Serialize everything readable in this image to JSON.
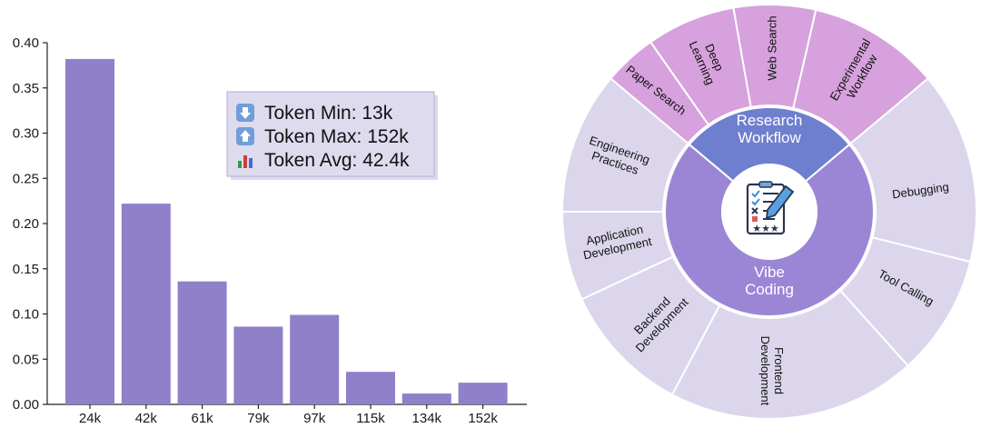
{
  "chart_data": [
    {
      "type": "bar",
      "categories": [
        "24k",
        "42k",
        "61k",
        "79k",
        "97k",
        "115k",
        "134k",
        "152k"
      ],
      "values": [
        0.382,
        0.222,
        0.136,
        0.086,
        0.099,
        0.036,
        0.012,
        0.024
      ],
      "ylim": [
        0,
        0.4
      ],
      "yticks": [
        "0.00",
        "0.05",
        "0.10",
        "0.15",
        "0.20",
        "0.25",
        "0.30",
        "0.35",
        "0.40"
      ],
      "bar_color": "#9080ca",
      "grid": false,
      "legend": {
        "placement": "top-right",
        "entries": [
          {
            "icon": "down-arrow-icon",
            "text": "Token Min: 13k"
          },
          {
            "icon": "up-arrow-icon",
            "text": "Token Max: 152k"
          },
          {
            "icon": "bar-chart-icon",
            "text": "Token Avg: 42.4k"
          }
        ]
      }
    },
    {
      "type": "sunburst",
      "center_icon": "task-checklist-icon",
      "inner": [
        {
          "name": "Research Workflow",
          "label_lines": [
            "Research",
            "Workflow"
          ],
          "color": "#6f7fcf"
        },
        {
          "name": "Vibe Coding",
          "label_lines": [
            "Vibe",
            "Coding"
          ],
          "color": "#9b86d6"
        }
      ],
      "outer": [
        {
          "parent": "Research Workflow",
          "label_lines": [
            "Paper Search"
          ],
          "color": "#d6a1dc"
        },
        {
          "parent": "Research Workflow",
          "label_lines": [
            "Deep",
            "Learning"
          ],
          "color": "#d6a1dc"
        },
        {
          "parent": "Research Workflow",
          "label_lines": [
            "Web Search"
          ],
          "color": "#d6a1dc"
        },
        {
          "parent": "Research Workflow",
          "label_lines": [
            "Experimental",
            "Workflow"
          ],
          "color": "#d6a1dc"
        },
        {
          "parent": "Vibe Coding",
          "label_lines": [
            "Debugging"
          ],
          "color": "#dcd6ec"
        },
        {
          "parent": "Vibe Coding",
          "label_lines": [
            "Tool Calling"
          ],
          "color": "#dcd6ec"
        },
        {
          "parent": "Vibe Coding",
          "label_lines": [
            "Frontend",
            "Development"
          ],
          "color": "#dcd6ec"
        },
        {
          "parent": "Vibe Coding",
          "label_lines": [
            "Backend",
            "Development"
          ],
          "color": "#dcd6ec"
        },
        {
          "parent": "Vibe Coding",
          "label_lines": [
            "Application",
            "Development"
          ],
          "color": "#dcd6ec"
        },
        {
          "parent": "Vibe Coding",
          "label_lines": [
            "Engineering",
            "Practices"
          ],
          "color": "#dcd6ec"
        }
      ]
    }
  ]
}
